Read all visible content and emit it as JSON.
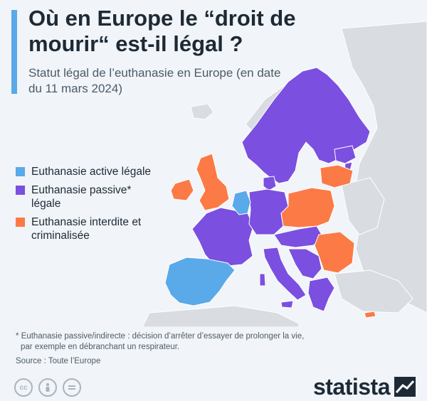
{
  "title": "Où en Europe le “droit de mourir“ est-il légal ?",
  "subtitle": "Statut légal de l’euthanasie en Europe (en date du 11 mars 2024)",
  "legend": [
    {
      "label": "Euthanasie active légale",
      "color": "#5aa9e8"
    },
    {
      "label": "Euthanasie passive* légale",
      "color": "#7b4fe0"
    },
    {
      "label": "Euthanasie interdite et criminalisée",
      "color": "#fc7a45"
    }
  ],
  "colors": {
    "background": "#f1f4f8",
    "land_other": "#d9dde2",
    "active_legal": "#5aa9e8",
    "passive_legal": "#7b4fe0",
    "forbidden": "#fc7a45",
    "title": "#1d2a36"
  },
  "regions": [
    {
      "name": "Espagne",
      "status": "active"
    },
    {
      "name": "Portugal",
      "status": "active"
    },
    {
      "name": "Benelux",
      "status": "active"
    },
    {
      "name": "Royaume-Uni",
      "status": "forbidden"
    },
    {
      "name": "Irlande",
      "status": "forbidden"
    },
    {
      "name": "Pologne",
      "status": "forbidden"
    },
    {
      "name": "Lituanie",
      "status": "forbidden"
    },
    {
      "name": "Roumanie",
      "status": "forbidden"
    },
    {
      "name": "Slovaquie",
      "status": "forbidden"
    },
    {
      "name": "Chypre",
      "status": "forbidden"
    },
    {
      "name": "France",
      "status": "passive"
    },
    {
      "name": "Allemagne",
      "status": "passive"
    },
    {
      "name": "Italie",
      "status": "passive"
    },
    {
      "name": "Scandinavie",
      "status": "passive"
    },
    {
      "name": "Finlande",
      "status": "passive"
    },
    {
      "name": "Grèce",
      "status": "passive"
    },
    {
      "name": "Europe centrale",
      "status": "passive"
    },
    {
      "name": "Balkans",
      "status": "passive"
    }
  ],
  "footnote_line1": "* Euthanasie passive/indirecte : décision d’arrêter d’essayer de prolonger la vie,",
  "footnote_line2": "par exemple en débranchant un respirateur.",
  "source": "Source : Toute l’Europe",
  "brand": "statista",
  "license_icons": [
    "cc-icon",
    "by-icon",
    "nd-icon"
  ]
}
